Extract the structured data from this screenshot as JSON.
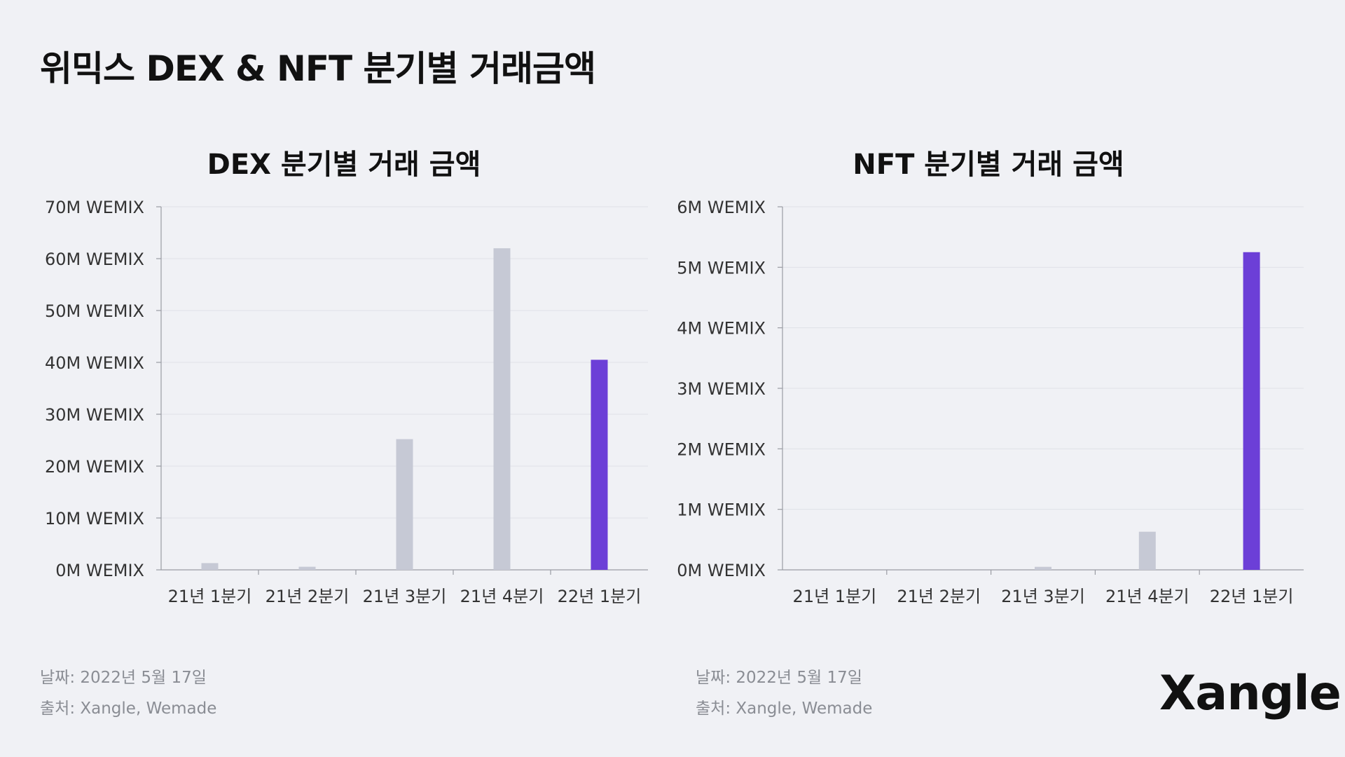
{
  "page": {
    "title": "위믹스 DEX & NFT 분기별 거래금액",
    "brand": "Xangle"
  },
  "colors": {
    "background": "#f0f1f5",
    "bar_default": "#c6c9d5",
    "bar_highlight": "#6c3fd7",
    "grid": "#dfe1e7",
    "axis": "#9a9ca3"
  },
  "footnotes": [
    {
      "date": "날짜: 2022년 5월 17일",
      "source": "출처: Xangle, Wemade"
    },
    {
      "date": "날짜: 2022년 5월 17일",
      "source": "출처: Xangle, Wemade"
    }
  ],
  "chart_data": [
    {
      "type": "bar",
      "title": "DEX 분기별 거래 금액",
      "categories": [
        "21년 1분기",
        "21년 2분기",
        "21년 3분기",
        "21년 4분기",
        "22년 1분기"
      ],
      "values": [
        1.3,
        0.6,
        25.2,
        62.0,
        40.5
      ],
      "highlight_index": 4,
      "ylim": [
        0,
        70
      ],
      "yticks": [
        0,
        10,
        20,
        30,
        40,
        50,
        60,
        70
      ],
      "ytick_labels": [
        "0M WEMIX",
        "10M WEMIX",
        "20M WEMIX",
        "30M WEMIX",
        "40M WEMIX",
        "50M WEMIX",
        "60M WEMIX",
        "70M WEMIX"
      ],
      "xlabel": "",
      "ylabel": "",
      "grid": true
    },
    {
      "type": "bar",
      "title": "NFT 분기별 거래 금액",
      "categories": [
        "21년 1분기",
        "21년 2분기",
        "21년 3분기",
        "21년 4분기",
        "22년 1분기"
      ],
      "values": [
        0,
        0,
        0.05,
        0.63,
        5.25
      ],
      "highlight_index": 4,
      "ylim": [
        0,
        6
      ],
      "yticks": [
        0,
        1,
        2,
        3,
        4,
        5,
        6
      ],
      "ytick_labels": [
        "0M WEMIX",
        "1M WEMIX",
        "2M WEMIX",
        "3M WEMIX",
        "4M WEMIX",
        "5M WEMIX",
        "6M WEMIX"
      ],
      "xlabel": "",
      "ylabel": "",
      "grid": true
    }
  ]
}
